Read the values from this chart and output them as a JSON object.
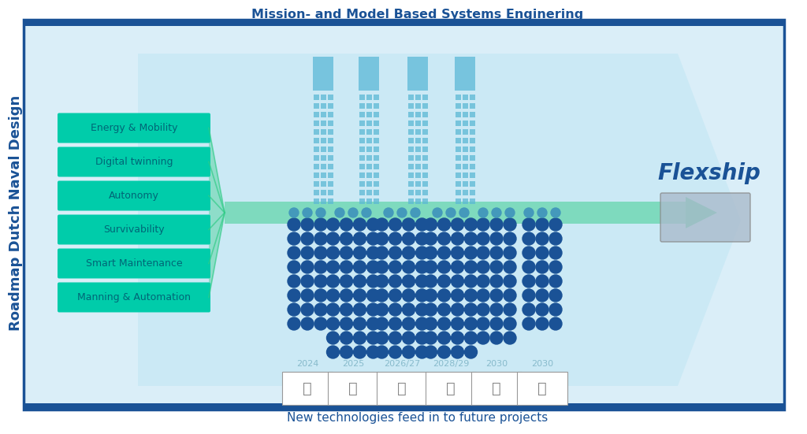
{
  "title_top": "Mission- and Model Based Systems Enginering",
  "title_left": "Roadmap Dutch Naval Design",
  "title_bottom": "New technologies feed in to future projects",
  "flexship_label": "Flexship",
  "themes": [
    "Energy & Mobility",
    "Digital twinning",
    "Autonomy",
    "Survivability",
    "Smart Maintenance",
    "Manning & Automation"
  ],
  "years": [
    "2024",
    "2025",
    "2026/27",
    "2028/29",
    "2030",
    "2030"
  ],
  "bg_color": "#daeef8",
  "theme_color": "#00ccaa",
  "theme_text_color": "#006677",
  "dot_color_blue": "#1a5296",
  "dot_color_light": "#5bb8d4",
  "dot_color_mid": "#4499bb",
  "year_color": "#88bbcc",
  "title_color": "#1a5296",
  "flexship_color": "#1a5296",
  "border_color": "#1a5296",
  "green_color": "#33cc88",
  "white": "#ffffff"
}
